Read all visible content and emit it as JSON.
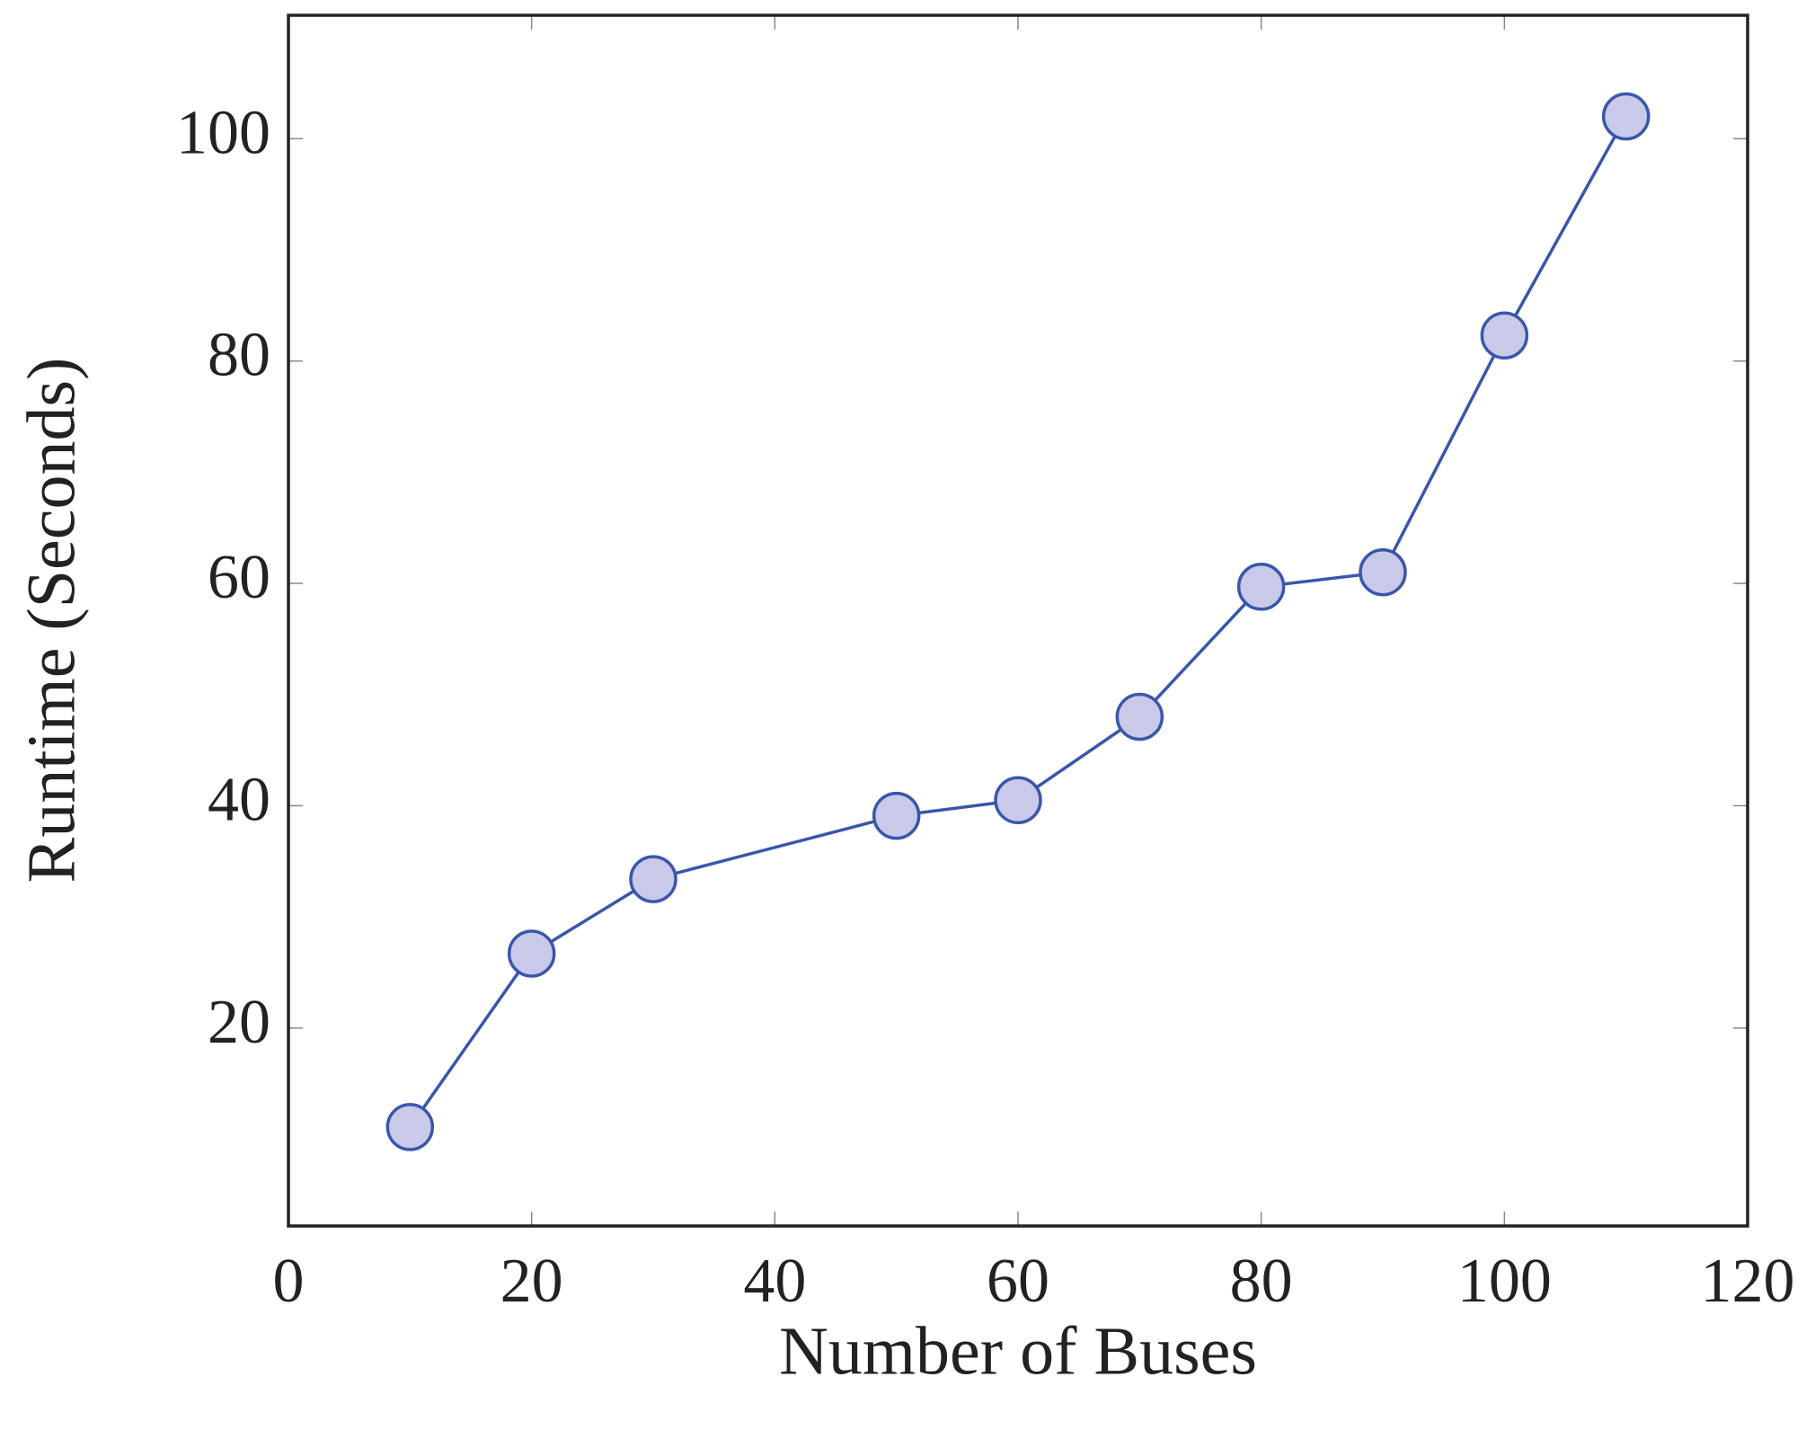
{
  "chart_data": {
    "type": "line",
    "x_label": "Number of Buses",
    "y_label": "Runtime (Seconds)",
    "series": [
      {
        "name": "Runtime",
        "color": "#3a56ab",
        "marker_fill": "#c9c9e9",
        "x": [
          10,
          20,
          30,
          50,
          60,
          70,
          80,
          90,
          100,
          110
        ],
        "values": [
          11.1,
          26.7,
          33.4,
          39.1,
          40.5,
          48.0,
          59.7,
          61.0,
          82.3,
          102.0
        ]
      }
    ],
    "xlim": [
      0,
      120
    ],
    "xticks": [
      0,
      20,
      40,
      60,
      80,
      100,
      120
    ],
    "ylim": [
      2.2,
      111.1
    ],
    "yticks": [
      20,
      40,
      60,
      80,
      100
    ],
    "grid": false
  }
}
